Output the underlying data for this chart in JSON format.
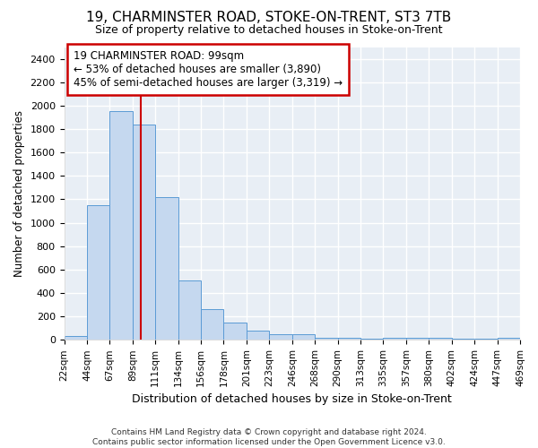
{
  "title": "19, CHARMINSTER ROAD, STOKE-ON-TRENT, ST3 7TB",
  "subtitle": "Size of property relative to detached houses in Stoke-on-Trent",
  "xlabel": "Distribution of detached houses by size in Stoke-on-Trent",
  "ylabel": "Number of detached properties",
  "bar_color": "#c5d8ef",
  "bar_edge_color": "#5b9bd5",
  "vline_color": "#cc0000",
  "vline_x": 99,
  "annotation_text": "19 CHARMINSTER ROAD: 99sqm\n← 53% of detached houses are smaller (3,890)\n45% of semi-detached houses are larger (3,319) →",
  "annotation_box_color": "#ffffff",
  "annotation_box_edge": "#cc0000",
  "footer": "Contains HM Land Registry data © Crown copyright and database right 2024.\nContains public sector information licensed under the Open Government Licence v3.0.",
  "bin_edges": [
    22,
    45,
    68,
    91,
    114,
    137,
    160,
    183,
    206,
    229,
    252,
    275,
    298,
    321,
    344,
    367,
    390,
    413,
    436,
    459,
    482
  ],
  "bin_labels": [
    "22sqm",
    "44sqm",
    "67sqm",
    "89sqm",
    "111sqm",
    "134sqm",
    "156sqm",
    "178sqm",
    "201sqm",
    "223sqm",
    "246sqm",
    "268sqm",
    "290sqm",
    "313sqm",
    "335sqm",
    "357sqm",
    "380sqm",
    "402sqm",
    "424sqm",
    "447sqm",
    "469sqm"
  ],
  "counts": [
    30,
    1150,
    1950,
    1840,
    1220,
    510,
    265,
    150,
    80,
    50,
    45,
    20,
    20,
    10,
    20,
    15,
    15,
    10,
    10,
    15
  ],
  "ylim": [
    0,
    2500
  ],
  "yticks": [
    0,
    200,
    400,
    600,
    800,
    1000,
    1200,
    1400,
    1600,
    1800,
    2000,
    2200,
    2400
  ],
  "background_color": "#e8eef5",
  "grid_color": "#ffffff",
  "fig_width": 6.0,
  "fig_height": 5.0
}
